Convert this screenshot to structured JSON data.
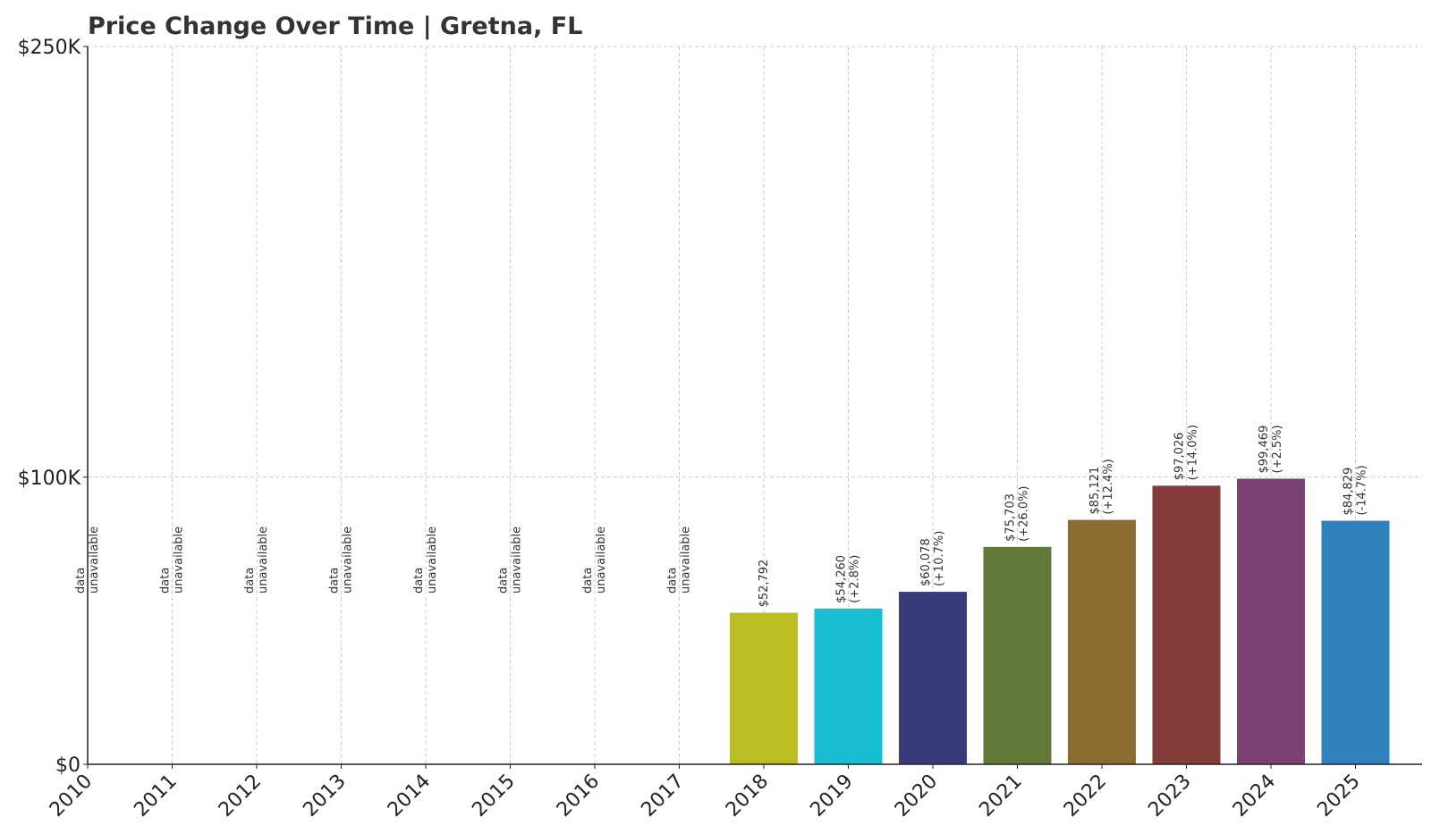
{
  "chart_data": {
    "type": "bar",
    "title": "Price Change Over Time | Gretna, FL",
    "xlabel": "",
    "ylabel": "",
    "categories": [
      "2010",
      "2011",
      "2012",
      "2013",
      "2014",
      "2015",
      "2016",
      "2017",
      "2018",
      "2019",
      "2020",
      "2021",
      "2022",
      "2023",
      "2024",
      "2025"
    ],
    "values": [
      null,
      null,
      null,
      null,
      null,
      null,
      null,
      null,
      52792,
      54260,
      60078,
      75703,
      85121,
      97026,
      99469,
      84829
    ],
    "value_labels": [
      "",
      "",
      "",
      "",
      "",
      "",
      "",
      "",
      "$52,792",
      "$54,260",
      "$60,078",
      "$75,703",
      "$85,121",
      "$97,026",
      "$99,469",
      "$84,829"
    ],
    "change_labels": [
      "",
      "",
      "",
      "",
      "",
      "",
      "",
      "",
      "",
      "(+2.8%)",
      "(+10.7%)",
      "(+26.0%)",
      "(+12.4%)",
      "(+14.0%)",
      "(+2.5%)",
      "(-14.7%)"
    ],
    "unavailable_label": [
      "data",
      "unavailable"
    ],
    "colors": [
      "#1f77b4",
      "#ff7f0e",
      "#2ca02c",
      "#d62728",
      "#9467bd",
      "#8c564b",
      "#e377c2",
      "#7f7f7f",
      "#bcbd22",
      "#17becf",
      "#393b79",
      "#637939",
      "#8c6d31",
      "#843c39",
      "#7b4173",
      "#3182bd"
    ],
    "ylim": [
      0,
      250000
    ],
    "yticks": [
      0,
      100000,
      250000
    ],
    "ytick_labels": [
      "$0",
      "$100K",
      "$250K"
    ],
    "grid": true,
    "legend": "none"
  }
}
